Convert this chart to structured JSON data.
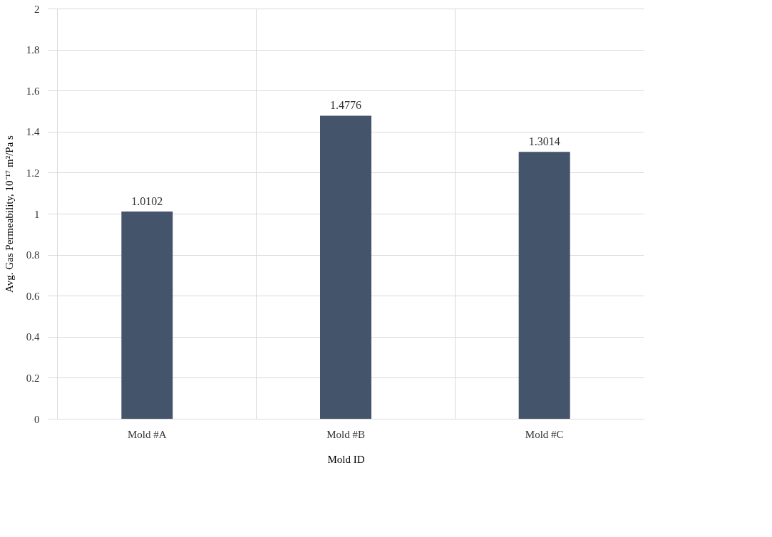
{
  "chart_data": {
    "type": "bar",
    "xlabel": "Mold ID",
    "ylabel": "Avg. Gas Permeability, 10⁻¹⁷ m²/Pa s",
    "categories": [
      "Mold #A",
      "Mold #B",
      "Mold #C"
    ],
    "series": [
      {
        "color": "#44546a",
        "values": [
          1.0102,
          1.4776,
          1.3014
        ]
      }
    ],
    "ylim": [
      0,
      2
    ],
    "yticks": [
      0,
      0.2,
      0.4,
      0.6,
      0.8,
      1,
      1.2,
      1.4,
      1.6,
      1.8,
      2
    ],
    "grid": true,
    "data_labels": true
  }
}
